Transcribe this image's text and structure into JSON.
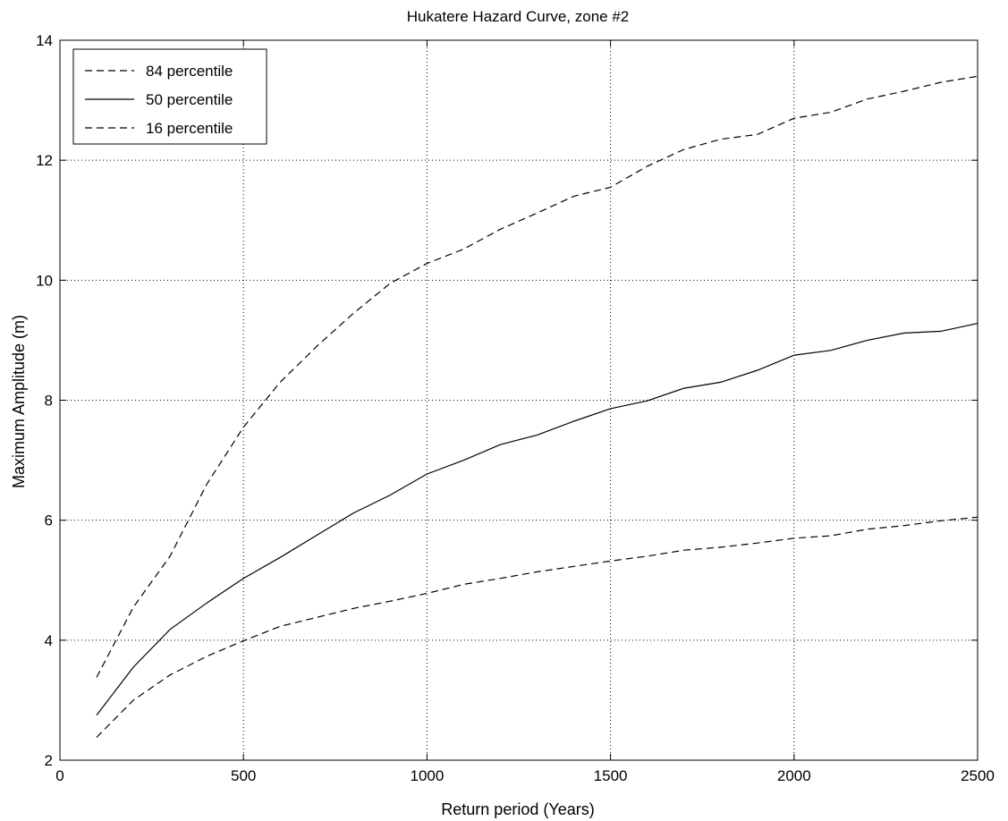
{
  "chart_data": {
    "type": "line",
    "title": "Hukatere Hazard Curve, zone #2",
    "xlabel": "Return period (Years)",
    "ylabel": "Maximum Amplitude (m)",
    "xlim": [
      0,
      2500
    ],
    "ylim": [
      2,
      14
    ],
    "xticks": [
      0,
      500,
      1000,
      1500,
      2000,
      2500
    ],
    "yticks": [
      2,
      4,
      6,
      8,
      10,
      12,
      14
    ],
    "xtick_labels": [
      "0",
      "500",
      "1000",
      "1500",
      "2000",
      "2500"
    ],
    "ytick_labels": [
      "2",
      "4",
      "6",
      "8",
      "10",
      "12",
      "14"
    ],
    "grid": true,
    "legend_position": "top-left",
    "x": [
      100,
      200,
      300,
      400,
      500,
      600,
      700,
      800,
      900,
      1000,
      1100,
      1200,
      1300,
      1400,
      1500,
      1600,
      1700,
      1800,
      1900,
      2000,
      2100,
      2200,
      2300,
      2400,
      2500
    ],
    "series": [
      {
        "name": "84 percentile",
        "style": "dashed",
        "color": "#000000",
        "values": [
          3.38,
          4.55,
          5.4,
          6.6,
          7.55,
          8.3,
          8.9,
          9.45,
          9.95,
          10.28,
          10.52,
          10.85,
          11.12,
          11.4,
          11.55,
          11.9,
          12.18,
          12.35,
          12.43,
          12.7,
          12.8,
          13.02,
          13.15,
          13.3,
          13.4
        ]
      },
      {
        "name": "50 percentile",
        "style": "solid",
        "color": "#000000",
        "values": [
          2.75,
          3.55,
          4.18,
          4.62,
          5.03,
          5.38,
          5.75,
          6.12,
          6.42,
          6.77,
          7.0,
          7.26,
          7.42,
          7.65,
          7.86,
          7.99,
          8.2,
          8.3,
          8.5,
          8.75,
          8.83,
          9.0,
          9.12,
          9.15,
          9.28
        ]
      },
      {
        "name": "16 percentile",
        "style": "dashed",
        "color": "#000000",
        "values": [
          2.38,
          3.0,
          3.42,
          3.73,
          3.99,
          4.23,
          4.38,
          4.53,
          4.65,
          4.78,
          4.93,
          5.03,
          5.14,
          5.23,
          5.32,
          5.4,
          5.5,
          5.55,
          5.62,
          5.7,
          5.74,
          5.85,
          5.91,
          5.99,
          6.05
        ]
      }
    ]
  }
}
